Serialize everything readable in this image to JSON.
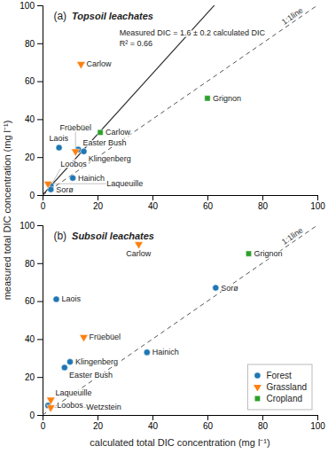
{
  "chart_data": [
    {
      "type": "scatter",
      "title": "Topsoil leachates",
      "annotations": [
        "(a)",
        "1:1line",
        "Measured DIC = 1.6 ± 0.2 calculated DIC",
        "R² = 0.66"
      ],
      "ylabel": "measured total DIC concentration (mg l⁻¹)",
      "regression_slope": 1.6,
      "xlim": [
        0,
        100
      ],
      "ylim": [
        0,
        100
      ],
      "xticks": [
        0,
        20,
        40,
        60,
        80,
        100
      ],
      "yticks": [
        0,
        20,
        40,
        60,
        80,
        100
      ],
      "series": [
        {
          "name": "Forest",
          "marker": "circle",
          "x": [
            3,
            3,
            6,
            11,
            13,
            15
          ],
          "values": [
            5,
            3,
            25,
            9,
            24,
            23
          ],
          "labels": [
            "Loobos",
            "Sorø",
            "Laois",
            "Hainich",
            "Easter Bush",
            "Klingenberg"
          ]
        },
        {
          "name": "Grassland",
          "marker": "triangle-down",
          "x": [
            2,
            12,
            14
          ],
          "values": [
            6,
            23,
            69
          ],
          "labels": [
            "Laqueuille",
            "Früebüel",
            "Carlow"
          ]
        },
        {
          "name": "Cropland",
          "marker": "square",
          "x": [
            21,
            60
          ],
          "values": [
            33,
            51
          ],
          "labels": [
            "Carlow",
            "Grignon"
          ]
        }
      ]
    },
    {
      "type": "scatter",
      "title": "Subsoil leachates",
      "annotations": [
        "(b)",
        "1:1line"
      ],
      "xlabel": "calculated total DIC concentration (mg l⁻¹)",
      "xlim": [
        0,
        100
      ],
      "ylim": [
        0,
        100
      ],
      "xticks": [
        0,
        20,
        40,
        60,
        80,
        100
      ],
      "yticks": [
        0,
        20,
        40,
        60,
        80,
        100
      ],
      "legend": "lower right",
      "series": [
        {
          "name": "Forest",
          "marker": "circle",
          "x": [
            2,
            5,
            8,
            10,
            38,
            63
          ],
          "values": [
            5,
            61,
            25,
            28,
            33,
            67
          ],
          "labels": [
            "Loobos",
            "Laois",
            "Easter Bush",
            "Klingenberg",
            "Hainich",
            "Sorø"
          ]
        },
        {
          "name": "Grassland",
          "marker": "triangle-down",
          "x": [
            3,
            3,
            15,
            35
          ],
          "values": [
            8,
            4,
            41,
            90
          ],
          "labels": [
            "Laqueuille",
            "Wetzstein",
            "Früebüel",
            "Carlow"
          ]
        },
        {
          "name": "Cropland",
          "marker": "square",
          "x": [
            75
          ],
          "values": [
            85
          ],
          "labels": [
            "Grignon"
          ]
        }
      ]
    }
  ]
}
